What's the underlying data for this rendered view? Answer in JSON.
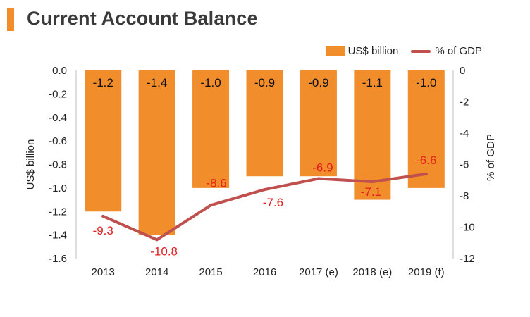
{
  "header": {
    "title": "Current Account Balance"
  },
  "legend": {
    "bar_label": "US$ billion",
    "line_label": "% of GDP"
  },
  "chart_data": {
    "type": "bar",
    "title": "Current Account Balance",
    "categories": [
      "2013",
      "2014",
      "2015",
      "2016",
      "2017 (e)",
      "2018 (e)",
      "2019 (f)"
    ],
    "series": [
      {
        "name": "US$ billion",
        "kind": "bar",
        "axis": "left",
        "color": "#f28d2b",
        "values": [
          -1.2,
          -1.4,
          -1.0,
          -0.9,
          -0.9,
          -1.1,
          -1.0
        ],
        "labels": [
          "-1.2",
          "-1.4",
          "-1.0",
          "-0.9",
          "-0.9",
          "-1.1",
          "-1.0"
        ]
      },
      {
        "name": "% of GDP",
        "kind": "line",
        "axis": "right",
        "color": "#c0504d",
        "values": [
          -9.3,
          -10.8,
          -8.6,
          -7.6,
          -6.9,
          -7.1,
          -6.6
        ],
        "labels": [
          "-9.3",
          "-10.8",
          "-8.6",
          "-7.6",
          "-6.9",
          "-7.1",
          "-6.6"
        ]
      }
    ],
    "left_axis": {
      "label": "US$ billion",
      "range": [
        -1.6,
        0.0
      ],
      "ticks": [
        "0.0",
        "-0.2",
        "-0.4",
        "-0.6",
        "-0.8",
        "-1.0",
        "-1.2",
        "-1.4",
        "-1.6"
      ]
    },
    "right_axis": {
      "label": "% of GDP",
      "range": [
        -12,
        0
      ],
      "ticks": [
        "0",
        "-2",
        "-4",
        "-6",
        "-8",
        "-10",
        "-12"
      ]
    },
    "gridlines": false,
    "legend_position": "top-right"
  }
}
